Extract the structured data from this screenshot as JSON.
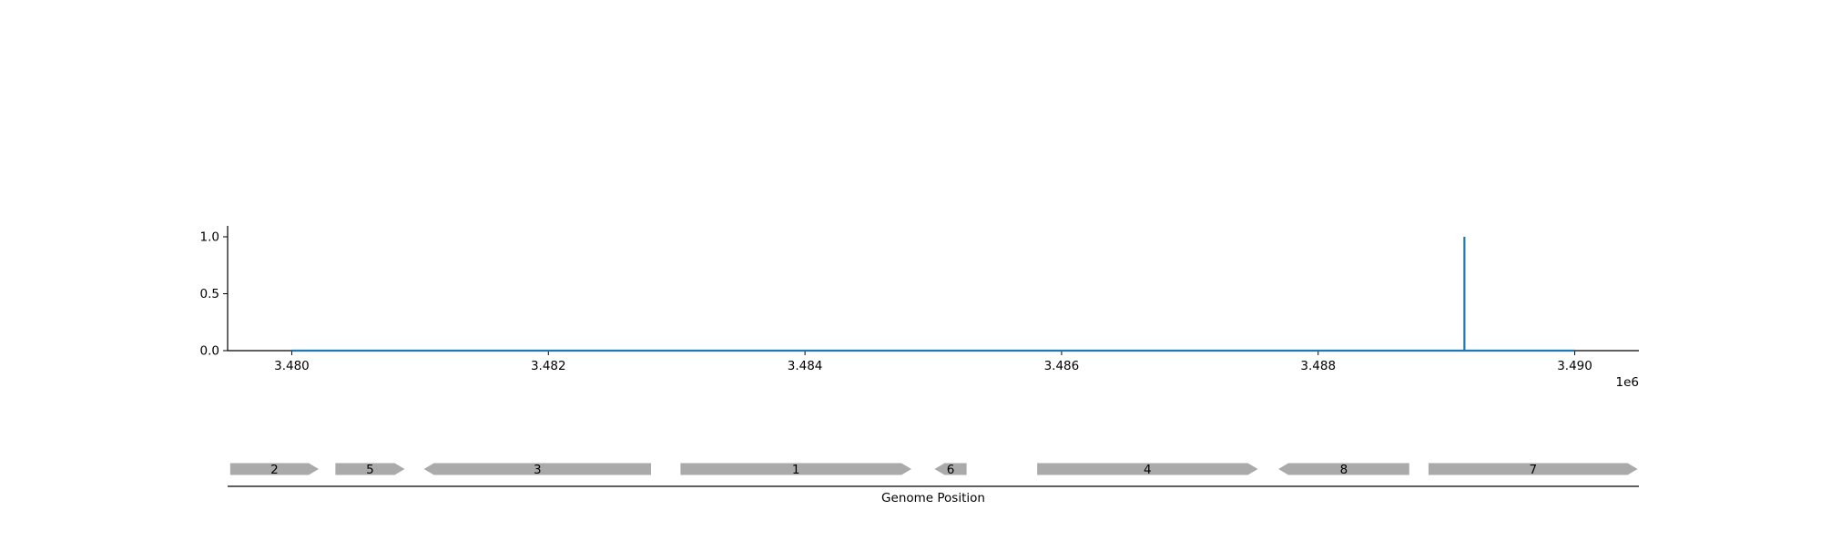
{
  "chart_data": [
    {
      "type": "line",
      "title": "",
      "xlabel": "",
      "ylabel": "",
      "x_offset_label": "1e6",
      "xlim": [
        3479500,
        3490500
      ],
      "ylim": [
        0,
        1.1
      ],
      "x_ticks": [
        3480000,
        3482000,
        3484000,
        3486000,
        3488000,
        3490000
      ],
      "x_tick_labels": [
        "3.480",
        "3.482",
        "3.484",
        "3.486",
        "3.488",
        "3.490"
      ],
      "y_ticks": [
        0.0,
        0.5,
        1.0
      ],
      "y_tick_labels": [
        "0.0",
        "0.5",
        "1.0"
      ],
      "grid": false,
      "color": "#1f77b4",
      "series": [
        {
          "x": [
            3480000,
            3489140,
            3489140,
            3489140,
            3490000
          ],
          "y": [
            0,
            0,
            1,
            0,
            0
          ]
        }
      ]
    },
    {
      "type": "gene-track",
      "xlabel": "Genome Position",
      "xlim": [
        3479500,
        3490500
      ],
      "color": "#aaaaaa",
      "genes": [
        {
          "label": "2",
          "start": 3479520,
          "end": 3480210,
          "strand": "+"
        },
        {
          "label": "5",
          "start": 3480340,
          "end": 3480880,
          "strand": "+"
        },
        {
          "label": "3",
          "start": 3481030,
          "end": 3482800,
          "strand": "-"
        },
        {
          "label": "1",
          "start": 3483030,
          "end": 3484830,
          "strand": "+"
        },
        {
          "label": "6",
          "start": 3485010,
          "end": 3485260,
          "strand": "-"
        },
        {
          "label": "4",
          "start": 3485810,
          "end": 3487530,
          "strand": "+"
        },
        {
          "label": "8",
          "start": 3487690,
          "end": 3488710,
          "strand": "-"
        },
        {
          "label": "7",
          "start": 3488860,
          "end": 3490490,
          "strand": "+"
        }
      ]
    }
  ]
}
